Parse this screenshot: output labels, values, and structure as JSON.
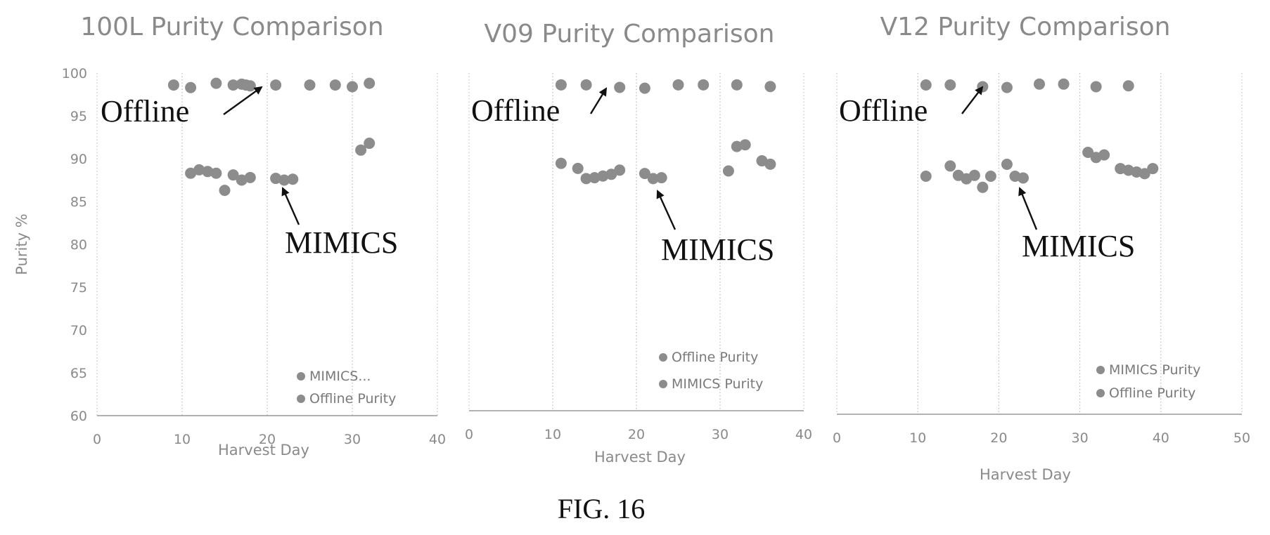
{
  "figure_caption": "FIG. 16",
  "colors": {
    "marker": "#8c8c8c",
    "axis": "#999999",
    "annotation": "#111111"
  },
  "chart_data": [
    {
      "type": "scatter",
      "title": "100L Purity Comparison",
      "xlabel": "Harvest Day",
      "ylabel": "Purity %",
      "xlim": [
        0,
        40
      ],
      "ylim": [
        60,
        100
      ],
      "xticks": [
        0,
        10,
        20,
        30,
        40
      ],
      "yticks": [
        60,
        65,
        70,
        75,
        80,
        85,
        90,
        95,
        100
      ],
      "legend_position": "bottom-right",
      "legend": [
        "MIMICS...",
        "Offline Purity"
      ],
      "series": [
        {
          "name": "MIMICS...",
          "x": [
            11,
            12,
            13,
            14,
            15,
            16,
            17,
            18,
            21,
            22,
            23,
            31,
            32
          ],
          "y": [
            88.3,
            88.7,
            88.5,
            88.3,
            86.3,
            88.1,
            87.5,
            87.8,
            87.7,
            87.5,
            87.6,
            91.0,
            91.8
          ]
        },
        {
          "name": "Offline Purity",
          "x": [
            9,
            11,
            14,
            16,
            17,
            17.5,
            18,
            21,
            25,
            28,
            30,
            32
          ],
          "y": [
            98.6,
            98.3,
            98.8,
            98.6,
            98.7,
            98.6,
            98.5,
            98.6,
            98.6,
            98.6,
            98.4,
            98.8
          ]
        }
      ],
      "annotations": [
        "Offline",
        "MIMICS"
      ]
    },
    {
      "type": "scatter",
      "title": "V09 Purity Comparison",
      "xlabel": "Harvest Day",
      "ylabel": "",
      "xlim": [
        0,
        40
      ],
      "ylim": [
        60,
        100
      ],
      "xticks": [
        0,
        10,
        20,
        30,
        40
      ],
      "yticks": [],
      "legend_position": "bottom-right",
      "legend": [
        "Offline Purity",
        "MIMICS Purity"
      ],
      "series": [
        {
          "name": "Offline Purity",
          "x": [
            11,
            14,
            18,
            21,
            25,
            28,
            32,
            36
          ],
          "y": [
            98.6,
            98.6,
            98.3,
            98.2,
            98.6,
            98.6,
            98.6,
            98.4
          ]
        },
        {
          "name": "MIMICS Purity",
          "x": [
            11,
            13,
            14,
            15,
            16,
            17,
            18,
            21,
            22,
            23,
            31,
            32,
            33,
            35,
            36
          ],
          "y": [
            89.3,
            88.7,
            87.5,
            87.6,
            87.8,
            88.0,
            88.5,
            88.1,
            87.5,
            87.6,
            88.4,
            91.3,
            91.5,
            89.6,
            89.2
          ]
        }
      ],
      "annotations": [
        "Offline",
        "MIMICS"
      ]
    },
    {
      "type": "scatter",
      "title": "V12 Purity Comparison",
      "xlabel": "Harvest Day",
      "ylabel": "",
      "xlim": [
        0,
        50
      ],
      "ylim": [
        60,
        100
      ],
      "xticks": [
        0,
        10,
        20,
        30,
        40,
        50
      ],
      "yticks": [],
      "legend_position": "bottom-right",
      "legend": [
        "MIMICS Purity",
        "Offline Purity"
      ],
      "series": [
        {
          "name": "MIMICS Purity",
          "x": [
            11,
            14,
            15,
            16,
            17,
            18,
            19,
            21,
            22,
            23,
            31,
            32,
            33,
            35,
            36,
            37,
            38,
            39
          ],
          "y": [
            87.9,
            89.1,
            88.0,
            87.6,
            88.0,
            86.6,
            87.9,
            89.3,
            87.9,
            87.7,
            90.7,
            90.1,
            90.4,
            88.8,
            88.6,
            88.4,
            88.2,
            88.8
          ]
        },
        {
          "name": "Offline Purity",
          "x": [
            11,
            14,
            18,
            21,
            25,
            28,
            32,
            36
          ],
          "y": [
            98.6,
            98.6,
            98.4,
            98.3,
            98.7,
            98.7,
            98.4,
            98.5
          ]
        }
      ],
      "annotations": [
        "Offline",
        "MIMICS"
      ]
    }
  ]
}
